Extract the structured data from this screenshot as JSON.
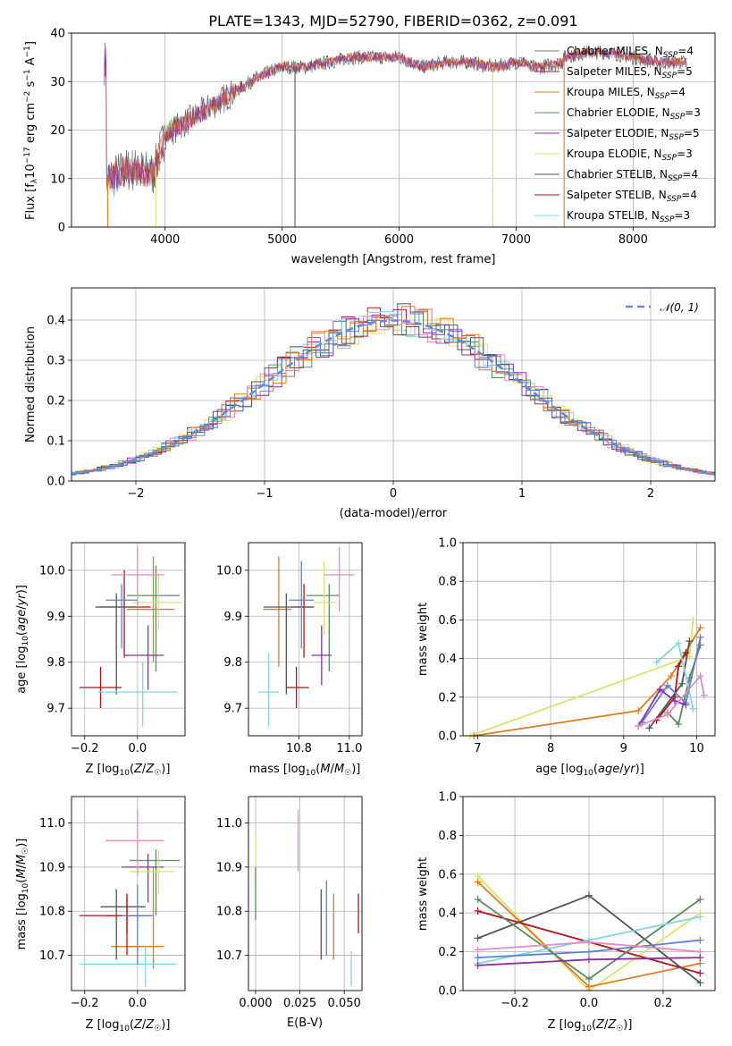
{
  "colors": {
    "Chabrier MILES": "#5b8c5a",
    "Salpeter MILES": "#b5121b",
    "Kroupa MILES": "#e07b1a",
    "Chabrier ELODIE": "#5b8c5a",
    "Salpeter ELODIE": "#8e2ca8",
    "Kroupa ELODIE": "#d9e36b",
    "Chabrier STELIB": "#555555",
    "Salpeter STELIB": "#b5121b",
    "Kroupa STELIB": "#7fd7e0",
    "blue": "#5b7fd6",
    "pink": "#e38bc2",
    "gaussian": "#5b8cdb"
  },
  "chart_data": [
    {
      "type": "line",
      "title": "PLATE=1343, MJD=52790, FIBERID=0362, z=0.091",
      "xlabel": "wavelength [Angstrom, rest frame]",
      "ylabel": "Flux [f_λ10^-17 erg cm^-2 s^-1 A^-1]",
      "xlim": [
        3200,
        8700
      ],
      "ylim": [
        0,
        40
      ],
      "xticks": [
        "4000",
        "5000",
        "6000",
        "7000",
        "8000"
      ],
      "yticks": [
        "0",
        "10",
        "20",
        "30",
        "40"
      ],
      "legend_position": "top-right",
      "series": [
        {
          "name": "Chabrier MILES, N_SSP=4",
          "base": "Chabrier",
          "sub": "SSP",
          "n": "=4"
        },
        {
          "name": "Salpeter MILES, N_SSP=5",
          "base": "Salpeter",
          "sub": "SSP",
          "n": "=5"
        },
        {
          "name": "Kroupa MILES, N_SSP=4",
          "base": "Kroupa",
          "sub": "SSP",
          "n": "=4"
        },
        {
          "name": "Chabrier ELODIE, N_SSP=3",
          "base": "Chabrier ELODIE",
          "sub": "SSP",
          "n": "=3"
        },
        {
          "name": "Salpeter ELODIE, N_SSP=5",
          "base": "Salpeter ELODIE",
          "sub": "SSP",
          "n": "=5"
        },
        {
          "name": "Kroupa ELODIE, N_SSP=3",
          "base": "Kroupa ELODIE",
          "sub": "SSP",
          "n": "=3"
        },
        {
          "name": "Chabrier STELIB, N_SSP=4",
          "base": "Chabrier STELIB",
          "sub": "SSP",
          "n": "=4"
        },
        {
          "name": "Salpeter STELIB, N_SSP=4",
          "base": "Salpeter STELIB",
          "sub": "SSP",
          "n": "=4"
        },
        {
          "name": "Kroupa STELIB, N_SSP=3",
          "base": "Kroupa STELIB",
          "sub": "SSP",
          "n": "=3"
        }
      ],
      "spectrum_anchors": {
        "x": [
          3500,
          3700,
          3900,
          4000,
          4200,
          4400,
          4600,
          4800,
          5000,
          5200,
          5400,
          5600,
          5800,
          6000,
          6200,
          6400,
          6600,
          6800,
          7000,
          7200,
          7400,
          7600,
          7800,
          8000,
          8200,
          8450
        ],
        "y": [
          10,
          12,
          11,
          19,
          22,
          25,
          28,
          31,
          33,
          33,
          34,
          35,
          35,
          35,
          33,
          34,
          34,
          33,
          34,
          34,
          35,
          36,
          36,
          35,
          34,
          34
        ]
      }
    },
    {
      "type": "line",
      "xlabel": "(data-model)/error",
      "ylabel": "Normed distribution",
      "xlim": [
        -2.5,
        2.5
      ],
      "ylim": [
        0,
        0.48
      ],
      "xticks": [
        "−2",
        "−1",
        "0",
        "1",
        "2"
      ],
      "yticks": [
        "0.0",
        "0.1",
        "0.2",
        "0.3",
        "0.4"
      ],
      "legend_position": "top-right",
      "gaussian_label": "𝒩(0, 1)",
      "hist_bin_width": 0.1
    },
    {
      "type": "scatter",
      "xlabel": "Z [log10(Z/Z☉)]",
      "ylabel": "age  [log10(age/yr)]",
      "xlim": [
        -0.25,
        0.18
      ],
      "ylim": [
        9.64,
        10.06
      ],
      "xticks": [
        "−0.2",
        "0.0"
      ],
      "yticks": [
        "9.7",
        "9.8",
        "9.9",
        "10.0"
      ],
      "points": [
        {
          "c": "Chabrier MILES",
          "x": 0.07,
          "y": 9.945,
          "xe": [
            -0.04,
            0.16
          ],
          "ye": [
            9.78,
            10.01
          ]
        },
        {
          "c": "Salpeter MILES",
          "x": -0.05,
          "y": 9.92,
          "xe": [
            -0.15,
            0.05
          ],
          "ye": [
            9.81,
            10.0
          ]
        },
        {
          "c": "Kroupa MILES",
          "x": 0.06,
          "y": 9.915,
          "xe": [
            -0.04,
            0.14
          ],
          "ye": [
            9.8,
            10.03
          ]
        },
        {
          "c": "Salpeter ELODIE",
          "x": 0.04,
          "y": 9.815,
          "xe": [
            -0.05,
            0.1
          ],
          "ye": [
            9.74,
            9.88
          ]
        },
        {
          "c": "Kroupa ELODIE",
          "x": 0.08,
          "y": 9.93,
          "xe": [
            -0.02,
            0.17
          ],
          "ye": [
            9.87,
            9.99
          ]
        },
        {
          "c": "Chabrier STELIB",
          "x": -0.08,
          "y": 9.92,
          "xe": [
            -0.16,
            0.0
          ],
          "ye": [
            9.73,
            9.95
          ]
        },
        {
          "c": "Salpeter STELIB",
          "x": -0.14,
          "y": 9.745,
          "xe": [
            -0.22,
            -0.06
          ],
          "ye": [
            9.7,
            9.79
          ]
        },
        {
          "c": "Kroupa STELIB",
          "x": 0.02,
          "y": 9.735,
          "xe": [
            -0.15,
            0.15
          ],
          "ye": [
            9.66,
            9.8
          ]
        },
        {
          "c": "blue",
          "x": -0.06,
          "y": 9.935,
          "xe": [
            -0.12,
            0.0
          ],
          "ye": [
            9.83,
            9.97
          ]
        },
        {
          "c": "pink",
          "x": 0.0,
          "y": 9.99,
          "xe": [
            -0.1,
            0.1
          ],
          "ye": [
            9.92,
            10.05
          ]
        }
      ]
    },
    {
      "type": "scatter",
      "xlabel": "mass [log10(M/M☉)]",
      "ylabel": "",
      "xlim": [
        10.6,
        11.05
      ],
      "ylim": [
        9.64,
        10.06
      ],
      "xticks": [
        "10.8",
        "11.0"
      ],
      "yticks": [
        "9.7",
        "9.8",
        "9.9",
        "10.0"
      ],
      "points": [
        {
          "c": "Chabrier MILES",
          "x": 10.92,
          "y": 9.945,
          "xe": [
            10.83,
            10.96
          ],
          "ye": [
            9.78,
            9.97
          ]
        },
        {
          "c": "Salpeter MILES",
          "x": 10.82,
          "y": 9.92,
          "xe": [
            10.77,
            10.86
          ],
          "ye": [
            9.81,
            9.97
          ]
        },
        {
          "c": "Kroupa MILES",
          "x": 10.72,
          "y": 9.915,
          "xe": [
            10.66,
            10.77
          ],
          "ye": [
            9.79,
            10.03
          ]
        },
        {
          "c": "Salpeter ELODIE",
          "x": 10.89,
          "y": 9.815,
          "xe": [
            10.85,
            10.93
          ],
          "ye": [
            9.75,
            9.88
          ]
        },
        {
          "c": "Kroupa ELODIE",
          "x": 10.9,
          "y": 9.93,
          "xe": [
            10.86,
            10.95
          ],
          "ye": [
            9.86,
            10.02
          ]
        },
        {
          "c": "Chabrier STELIB",
          "x": 10.75,
          "y": 9.92,
          "xe": [
            10.66,
            10.85
          ],
          "ye": [
            9.73,
            9.95
          ]
        },
        {
          "c": "Salpeter STELIB",
          "x": 10.79,
          "y": 9.745,
          "xe": [
            10.75,
            10.84
          ],
          "ye": [
            9.7,
            9.79
          ]
        },
        {
          "c": "Kroupa STELIB",
          "x": 10.68,
          "y": 9.735,
          "xe": [
            10.64,
            10.72
          ],
          "ye": [
            9.66,
            9.82
          ]
        },
        {
          "c": "blue",
          "x": 10.81,
          "y": 9.935,
          "xe": [
            10.76,
            10.86
          ],
          "ye": [
            9.83,
            10.02
          ]
        },
        {
          "c": "pink",
          "x": 10.96,
          "y": 9.99,
          "xe": [
            10.9,
            11.02
          ],
          "ye": [
            9.91,
            10.05
          ]
        }
      ]
    },
    {
      "type": "line",
      "xlabel": "age  [log10(age/yr)]",
      "ylabel": "mass weight",
      "xlim": [
        6.8,
        10.25
      ],
      "ylim": [
        0,
        1.0
      ],
      "xticks": [
        "7",
        "8",
        "9",
        "10"
      ],
      "yticks": [
        "0.0",
        "0.2",
        "0.4",
        "0.6",
        "0.8",
        "1.0"
      ],
      "series": [
        {
          "c": "Kroupa ELODIE",
          "x": [
            6.9,
            9.9,
            9.95
          ],
          "y": [
            0.0,
            0.41,
            0.6
          ]
        },
        {
          "c": "Kroupa MILES",
          "x": [
            6.95,
            9.2,
            9.65,
            10.05
          ],
          "y": [
            0.0,
            0.13,
            0.31,
            0.56
          ]
        },
        {
          "c": "Chabrier STELIB",
          "x": [
            9.35,
            9.8,
            9.9
          ],
          "y": [
            0.04,
            0.27,
            0.49
          ]
        },
        {
          "c": "Salpeter STELIB",
          "x": [
            9.45,
            9.7,
            9.75,
            9.85
          ],
          "y": [
            0.08,
            0.2,
            0.36,
            0.43
          ]
        },
        {
          "c": "Chabrier MILES",
          "x": [
            9.6,
            9.75,
            9.9,
            10.05
          ],
          "y": [
            0.12,
            0.06,
            0.3,
            0.47
          ]
        },
        {
          "c": "Kroupa STELIB",
          "x": [
            9.45,
            9.75,
            9.95
          ],
          "y": [
            0.38,
            0.48,
            0.14
          ]
        },
        {
          "c": "blue",
          "x": [
            9.25,
            9.6,
            9.85,
            10.05
          ],
          "y": [
            0.07,
            0.26,
            0.17,
            0.51
          ]
        },
        {
          "c": "Salpeter ELODIE",
          "x": [
            9.2,
            9.5,
            9.7,
            9.85
          ],
          "y": [
            0.05,
            0.24,
            0.18,
            0.16
          ]
        },
        {
          "c": "pink",
          "x": [
            9.2,
            9.6,
            10.05,
            10.1
          ],
          "y": [
            0.05,
            0.11,
            0.31,
            0.21
          ]
        }
      ]
    },
    {
      "type": "scatter",
      "xlabel": "Z [log10(Z/Z☉)]",
      "ylabel": "mass [log10(M/M☉)]",
      "xlim": [
        -0.25,
        0.18
      ],
      "ylim": [
        10.62,
        11.06
      ],
      "xticks": [
        "−0.2",
        "0.0"
      ],
      "yticks": [
        "10.7",
        "10.8",
        "10.9",
        "11.0"
      ],
      "points": [
        {
          "c": "Chabrier MILES",
          "x": 0.07,
          "y": 10.915,
          "xe": [
            -0.03,
            0.16
          ],
          "ye": [
            10.79,
            10.94
          ]
        },
        {
          "c": "Salpeter MILES",
          "x": -0.04,
          "y": 10.79,
          "xe": [
            -0.22,
            0.05
          ],
          "ye": [
            10.75,
            10.84
          ]
        },
        {
          "c": "Kroupa MILES",
          "x": 0.06,
          "y": 10.72,
          "xe": [
            -0.1,
            0.1
          ],
          "ye": [
            10.67,
            10.9
          ]
        },
        {
          "c": "Salpeter ELODIE",
          "x": 0.04,
          "y": 10.9,
          "xe": [
            -0.06,
            0.1
          ],
          "ye": [
            10.82,
            10.93
          ]
        },
        {
          "c": "Kroupa ELODIE",
          "x": 0.08,
          "y": 10.89,
          "xe": [
            -0.03,
            0.14
          ],
          "ye": [
            10.84,
            10.94
          ]
        },
        {
          "c": "Chabrier STELIB",
          "x": -0.08,
          "y": 10.81,
          "xe": [
            -0.14,
            0.03
          ],
          "ye": [
            10.69,
            10.85
          ]
        },
        {
          "c": "Salpeter STELIB",
          "x": -0.04,
          "y": 10.79,
          "xe": [
            -0.12,
            0.04
          ],
          "ye": [
            10.7,
            10.83
          ]
        },
        {
          "c": "Kroupa STELIB",
          "x": 0.03,
          "y": 10.68,
          "xe": [
            -0.22,
            0.15
          ],
          "ye": [
            10.63,
            10.72
          ]
        },
        {
          "c": "blue",
          "x": 0.0,
          "y": 10.79,
          "xe": [
            -0.06,
            0.06
          ],
          "ye": [
            10.68,
            10.86
          ]
        },
        {
          "c": "pink",
          "x": 0.0,
          "y": 10.96,
          "xe": [
            -0.12,
            0.1
          ],
          "ye": [
            10.88,
            11.03
          ]
        }
      ]
    },
    {
      "type": "scatter",
      "xlabel": "E(B-V)",
      "ylabel": "",
      "xlim": [
        -0.004,
        0.06
      ],
      "ylim": [
        10.62,
        11.06
      ],
      "xticks": [
        "0.000",
        "0.025",
        "0.050"
      ],
      "yticks": [
        "10.7",
        "10.8",
        "10.9",
        "11.0"
      ],
      "points": [
        {
          "c": "Kroupa ELODIE",
          "x": 0.0,
          "y": 10.92,
          "ye": [
            10.86,
            10.97
          ]
        },
        {
          "c": "Chabrier MILES",
          "x": 0.0,
          "y": 10.85,
          "ye": [
            10.78,
            10.9
          ]
        },
        {
          "c": "pink",
          "x": 0.024,
          "y": 10.96,
          "ye": [
            10.89,
            11.03
          ]
        },
        {
          "c": "Chabrier STELIB",
          "x": 0.037,
          "y": 10.77,
          "ye": [
            10.69,
            10.85
          ]
        },
        {
          "c": "blue",
          "x": 0.04,
          "y": 10.8,
          "ye": [
            10.7,
            10.87
          ]
        },
        {
          "c": "Kroupa MILES",
          "x": 0.044,
          "y": 10.77,
          "ye": [
            10.69,
            10.84
          ]
        },
        {
          "c": "Kroupa STELIB",
          "x": 0.054,
          "y": 10.67,
          "ye": [
            10.63,
            10.71
          ]
        },
        {
          "c": "Salpeter STELIB",
          "x": 0.058,
          "y": 10.8,
          "ye": [
            10.75,
            10.84
          ]
        }
      ]
    },
    {
      "type": "line",
      "xlabel": "Z [log10(Z/Z☉)]",
      "ylabel": "mass weight",
      "xlim": [
        -0.34,
        0.34
      ],
      "ylim": [
        0,
        1.0
      ],
      "xticks": [
        "−0.2",
        "0.0",
        "0.2"
      ],
      "yticks": [
        "0.0",
        "0.2",
        "0.4",
        "0.6",
        "0.8",
        "1.0"
      ],
      "series": [
        {
          "c": "Kroupa ELODIE",
          "x": [
            -0.3,
            0.0,
            0.3
          ],
          "y": [
            0.59,
            0.0,
            0.4
          ]
        },
        {
          "c": "Kroupa MILES",
          "x": [
            -0.3,
            0.0,
            0.3
          ],
          "y": [
            0.56,
            0.02,
            0.14
          ]
        },
        {
          "c": "Salpeter STELIB",
          "x": [
            -0.3,
            0.0,
            0.3
          ],
          "y": [
            0.41,
            0.25,
            0.09
          ]
        },
        {
          "c": "Chabrier STELIB",
          "x": [
            -0.3,
            0.0,
            0.3
          ],
          "y": [
            0.27,
            0.49,
            0.04
          ]
        },
        {
          "c": "Chabrier MILES",
          "x": [
            -0.3,
            0.0,
            0.3
          ],
          "y": [
            0.47,
            0.06,
            0.47
          ]
        },
        {
          "c": "Kroupa STELIB",
          "x": [
            -0.3,
            0.0,
            0.3
          ],
          "y": [
            0.14,
            0.26,
            0.38
          ]
        },
        {
          "c": "blue",
          "x": [
            -0.3,
            0.0,
            0.3
          ],
          "y": [
            0.17,
            0.2,
            0.26
          ]
        },
        {
          "c": "pink",
          "x": [
            -0.3,
            0.0,
            0.3
          ],
          "y": [
            0.21,
            0.25,
            0.2
          ]
        },
        {
          "c": "Salpeter ELODIE",
          "x": [
            -0.3,
            0.0,
            0.3
          ],
          "y": [
            0.13,
            0.16,
            0.17
          ]
        }
      ]
    }
  ]
}
